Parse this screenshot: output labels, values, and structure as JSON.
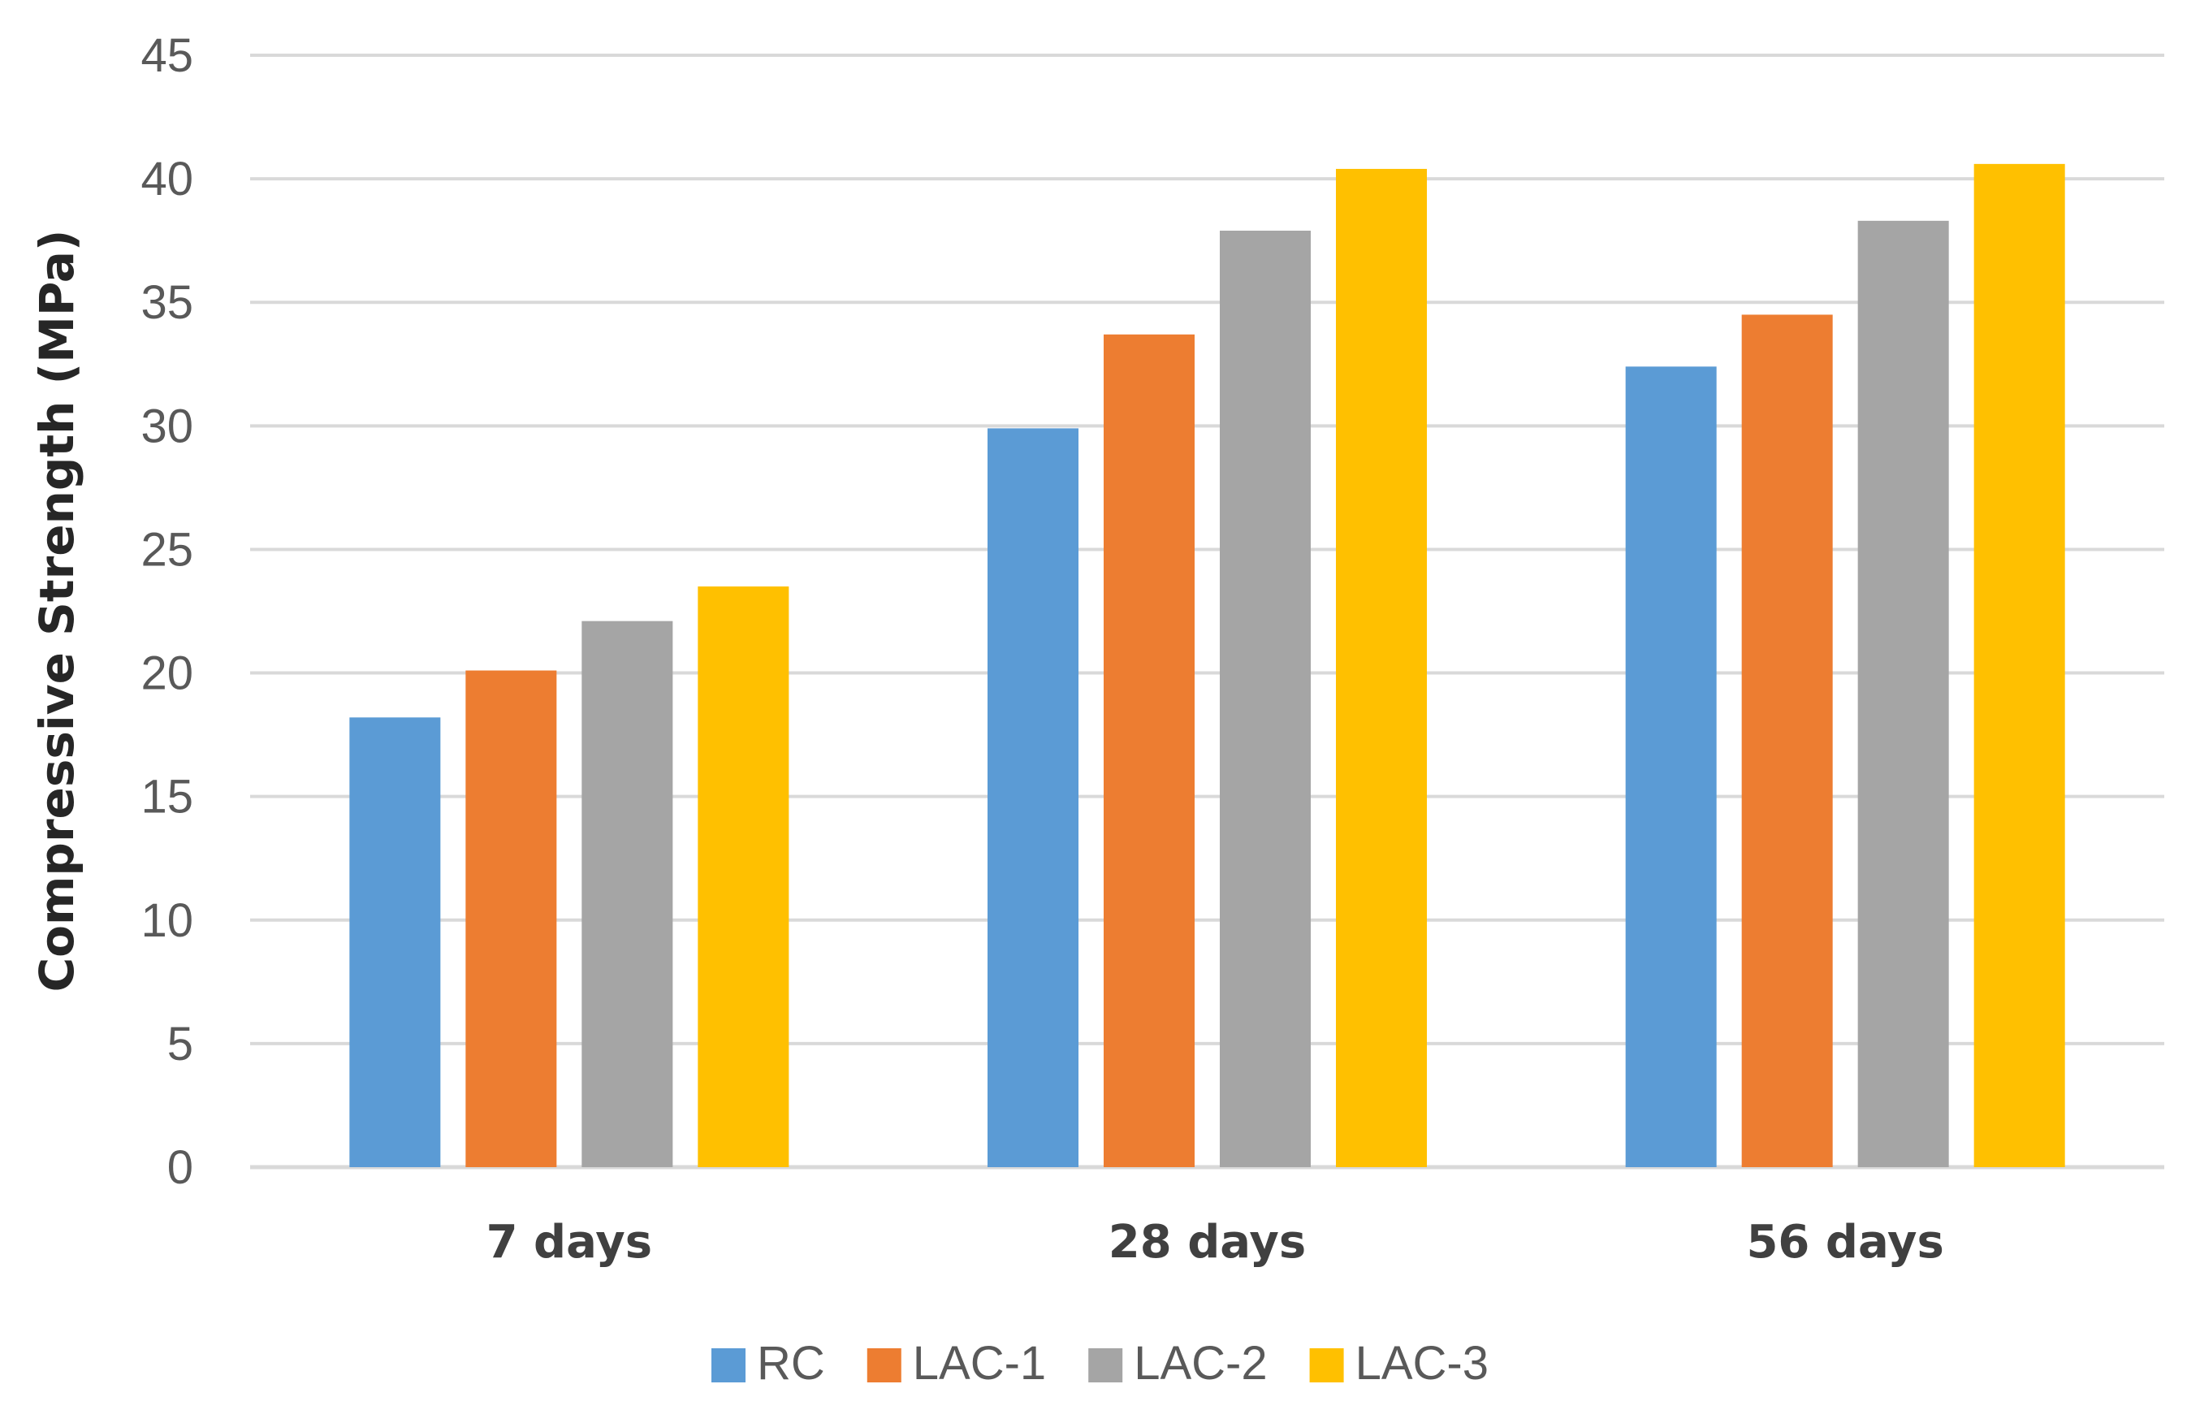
{
  "chart_data": {
    "type": "bar",
    "title": "",
    "xlabel": "",
    "ylabel": "Compressive Strength (MPa)",
    "ylim": [
      0,
      45
    ],
    "ytick_step": 5,
    "grid": true,
    "legend_position": "bottom",
    "categories": [
      "7 days",
      "28 days",
      "56 days"
    ],
    "series": [
      {
        "name": "RC",
        "color": "#5B9BD5",
        "values": [
          18.2,
          29.9,
          32.4
        ]
      },
      {
        "name": "LAC-1",
        "color": "#ED7D31",
        "values": [
          20.1,
          33.7,
          34.5
        ]
      },
      {
        "name": "LAC-2",
        "color": "#A5A5A5",
        "values": [
          22.1,
          37.9,
          38.3
        ]
      },
      {
        "name": "LAC-3",
        "color": "#FFC000",
        "values": [
          23.5,
          40.4,
          40.6
        ]
      }
    ]
  }
}
